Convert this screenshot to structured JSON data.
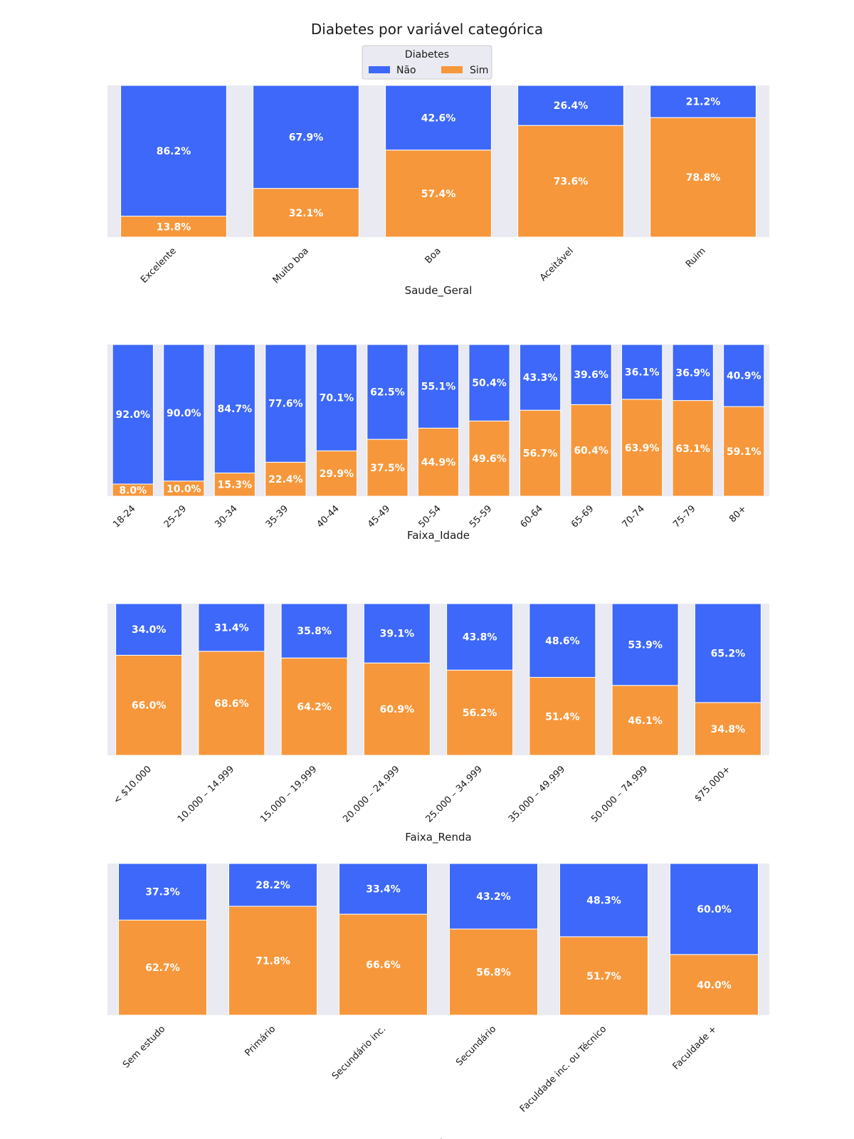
{
  "figure": {
    "title": "Diabetes por variável categórica",
    "background_color": "#ffffff",
    "plot_background_color": "#eaeaf2"
  },
  "legend": {
    "title": "Diabetes",
    "placement": "top-center",
    "entries": [
      {
        "label": "Não",
        "color": "#3d68fa"
      },
      {
        "label": "Sim",
        "color": "#f7973b"
      }
    ]
  },
  "chart_data": [
    {
      "type": "bar",
      "stacked": true,
      "percent": true,
      "xlabel": "Saude_Geral",
      "ylim": [
        0,
        100
      ],
      "grid": false,
      "categories": [
        "Excelente",
        "Muito boa",
        "Boa",
        "Aceitável",
        "Ruim"
      ],
      "series": [
        {
          "name": "Sim",
          "color": "#f7973b",
          "values": [
            13.8,
            32.1,
            57.4,
            73.6,
            78.8
          ],
          "labels": [
            "13.8%",
            "32.1%",
            "57.4%",
            "73.6%",
            "78.8%"
          ]
        },
        {
          "name": "Não",
          "color": "#3d68fa",
          "values": [
            86.2,
            67.9,
            42.6,
            26.4,
            21.2
          ],
          "labels": [
            "86.2%",
            "67.9%",
            "42.6%",
            "26.4%",
            "21.2%"
          ]
        }
      ]
    },
    {
      "type": "bar",
      "stacked": true,
      "percent": true,
      "xlabel": "Faixa_Idade",
      "ylim": [
        0,
        100
      ],
      "grid": false,
      "categories": [
        "18-24",
        "25-29",
        "30-34",
        "35-39",
        "40-44",
        "45-49",
        "50-54",
        "55-59",
        "60-64",
        "65-69",
        "70-74",
        "75-79",
        "80+"
      ],
      "series": [
        {
          "name": "Sim",
          "color": "#f7973b",
          "values": [
            8.0,
            10.0,
            15.3,
            22.4,
            29.9,
            37.5,
            44.9,
            49.6,
            56.7,
            60.4,
            63.9,
            63.1,
            59.1
          ],
          "labels": [
            "8.0%",
            "10.0%",
            "15.3%",
            "22.4%",
            "29.9%",
            "37.5%",
            "44.9%",
            "49.6%",
            "56.7%",
            "60.4%",
            "63.9%",
            "63.1%",
            "59.1%"
          ]
        },
        {
          "name": "Não",
          "color": "#3d68fa",
          "values": [
            92.0,
            90.0,
            84.7,
            77.6,
            70.1,
            62.5,
            55.1,
            50.4,
            43.3,
            39.6,
            36.1,
            36.9,
            40.9
          ],
          "labels": [
            "92.0%",
            "90.0%",
            "84.7%",
            "77.6%",
            "70.1%",
            "62.5%",
            "55.1%",
            "50.4%",
            "43.3%",
            "39.6%",
            "36.1%",
            "36.9%",
            "40.9%"
          ]
        }
      ]
    },
    {
      "type": "bar",
      "stacked": true,
      "percent": true,
      "xlabel": "Faixa_Renda",
      "ylim": [
        0,
        100
      ],
      "grid": false,
      "categories": [
        "< $10.000",
        "10.000 – 14.999",
        "15.000 – 19.999",
        "20.000 – 24.999",
        "25.000 – 34.999",
        "35.000 – 49.999",
        "50.000 – 74.999",
        "$75.000+"
      ],
      "series": [
        {
          "name": "Sim",
          "color": "#f7973b",
          "values": [
            66.0,
            68.6,
            64.2,
            60.9,
            56.2,
            51.4,
            46.1,
            34.8
          ],
          "labels": [
            "66.0%",
            "68.6%",
            "64.2%",
            "60.9%",
            "56.2%",
            "51.4%",
            "46.1%",
            "34.8%"
          ]
        },
        {
          "name": "Não",
          "color": "#3d68fa",
          "values": [
            34.0,
            31.4,
            35.8,
            39.1,
            43.8,
            48.6,
            53.9,
            65.2
          ],
          "labels": [
            "34.0%",
            "31.4%",
            "35.8%",
            "39.1%",
            "43.8%",
            "48.6%",
            "53.9%",
            "65.2%"
          ]
        }
      ]
    },
    {
      "type": "bar",
      "stacked": true,
      "percent": true,
      "xlabel": "Ensino",
      "ylim": [
        0,
        100
      ],
      "grid": false,
      "categories": [
        "Sem estudo",
        "Primário",
        "Secundário inc.",
        "Secundário",
        "Faculdade inc. ou Técnico",
        "Faculdade +"
      ],
      "series": [
        {
          "name": "Sim",
          "color": "#f7973b",
          "values": [
            62.7,
            71.8,
            66.6,
            56.8,
            51.7,
            40.0
          ],
          "labels": [
            "62.7%",
            "71.8%",
            "66.6%",
            "56.8%",
            "51.7%",
            "40.0%"
          ]
        },
        {
          "name": "Não",
          "color": "#3d68fa",
          "values": [
            37.3,
            28.2,
            33.4,
            43.2,
            48.3,
            60.0
          ],
          "labels": [
            "37.3%",
            "28.2%",
            "33.4%",
            "43.2%",
            "48.3%",
            "60.0%"
          ]
        }
      ]
    }
  ]
}
